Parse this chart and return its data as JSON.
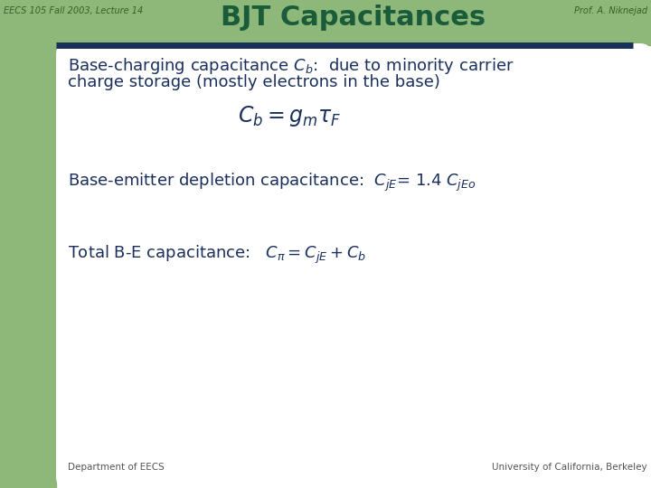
{
  "title": "BJT Capacitances",
  "header_left": "EECS 105 Fall 2003, Lecture 14",
  "header_right": "Prof. A. Niknejad",
  "footer_left": "Department of EECS",
  "footer_right": "University of California, Berkeley",
  "bg_color": "#ffffff",
  "left_bar_color": "#8db87a",
  "title_color": "#1a5c3a",
  "header_bar_color": "#1a2f5c",
  "text_color": "#1a2f5c",
  "header_text_color": "#3a5c2a",
  "footer_text_color": "#555555"
}
